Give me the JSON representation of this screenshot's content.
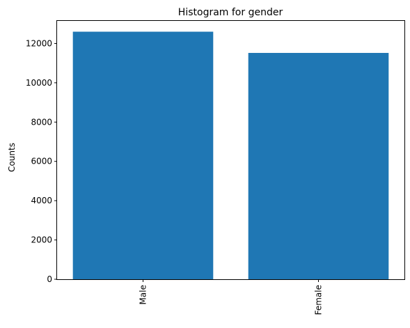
{
  "chart_data": {
    "type": "bar",
    "title": "Histogram for gender",
    "xlabel": "",
    "ylabel": "Counts",
    "categories": [
      "Male",
      "Female"
    ],
    "values": [
      12600,
      11520
    ],
    "ylim": [
      0,
      13150
    ],
    "yticks": [
      "0",
      "2000",
      "4000",
      "6000",
      "8000",
      "10000",
      "12000"
    ],
    "ytick_values": [
      0,
      2000,
      4000,
      6000,
      8000,
      10000,
      12000
    ],
    "bar_color": "#1f77b4",
    "grid": false,
    "legend": "none"
  }
}
